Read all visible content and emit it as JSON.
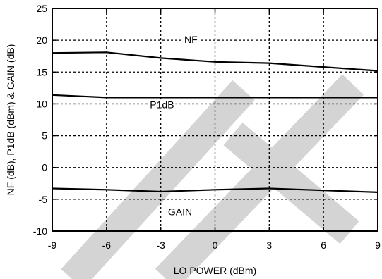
{
  "chart_data": {
    "type": "line",
    "xlabel": "LO POWER (dBm)",
    "ylabel": "NF (dB), P1dB (dBm) & GAIN (dB)",
    "xlim": [
      -9,
      9
    ],
    "ylim": [
      -10,
      25
    ],
    "x_ticks": [
      -9,
      -6,
      -3,
      0,
      3,
      6,
      9
    ],
    "y_ticks": [
      -10,
      -5,
      0,
      5,
      10,
      15,
      20,
      25
    ],
    "x_tick_labels": [
      "-9",
      "-6",
      "-3",
      "0",
      "3",
      "6",
      "9"
    ],
    "y_tick_labels": [
      "-10",
      "-5",
      "0",
      "5",
      "10",
      "15",
      "20",
      "25"
    ],
    "grid": true,
    "grid_style": "dotted",
    "watermark_color": "#d4d4d4",
    "series": [
      {
        "name": "NF",
        "x": [
          -9,
          -6,
          -3,
          0,
          3,
          6,
          9
        ],
        "y": [
          18.0,
          18.1,
          17.2,
          16.6,
          16.4,
          15.8,
          15.2
        ]
      },
      {
        "name": "P1dB",
        "x": [
          -9,
          -6,
          -3,
          0,
          3,
          6,
          9
        ],
        "y": [
          11.4,
          11.0,
          11.0,
          11.0,
          11.0,
          11.0,
          11.0
        ]
      },
      {
        "name": "GAIN",
        "x": [
          -9,
          -6,
          -3,
          0,
          3,
          6,
          9
        ],
        "y": [
          -3.3,
          -3.5,
          -3.8,
          -3.5,
          -3.3,
          -3.6,
          -3.9
        ]
      }
    ],
    "annotations": [
      {
        "text": "NF",
        "series": "NF",
        "x": -1.7,
        "y": 19.6
      },
      {
        "text": "P1dB",
        "series": "P1dB",
        "x": -3.6,
        "y": 9.3
      },
      {
        "text": "GAIN",
        "series": "GAIN",
        "x": -2.6,
        "y": -7.5
      }
    ]
  }
}
